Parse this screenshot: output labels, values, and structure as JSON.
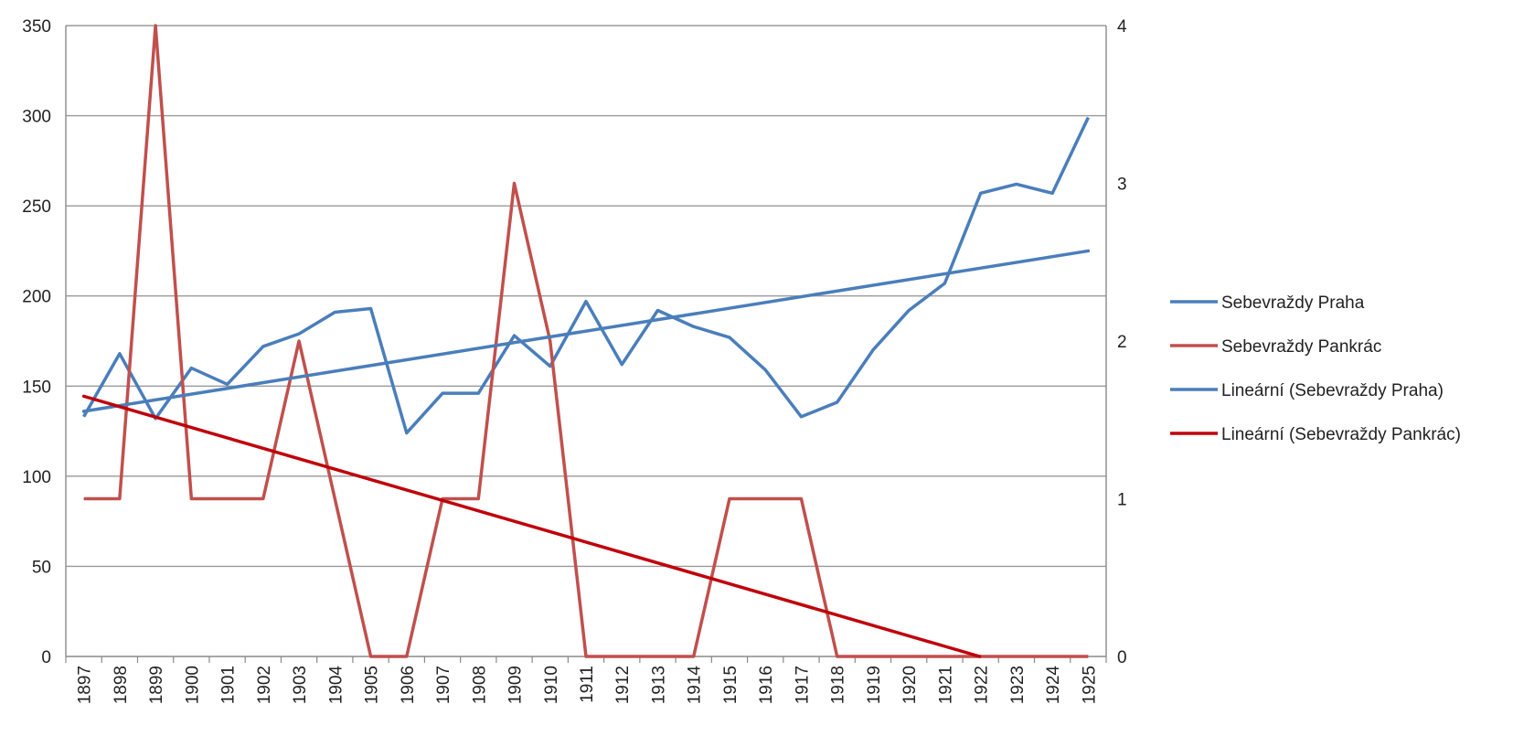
{
  "chart_data": {
    "type": "line",
    "title": "",
    "xlabel": "",
    "ylabel": "",
    "grid": true,
    "legend_position": "right",
    "categories": [
      "1897",
      "1898",
      "1899",
      "1900",
      "1901",
      "1902",
      "1903",
      "1904",
      "1905",
      "1906",
      "1907",
      "1908",
      "1909",
      "1910",
      "1911",
      "1912",
      "1913",
      "1914",
      "1915",
      "1916",
      "1917",
      "1918",
      "1919",
      "1920",
      "1921",
      "1922",
      "1923",
      "1924",
      "1925"
    ],
    "y_left": {
      "min": 0,
      "max": 350,
      "ticks": [
        0,
        50,
        100,
        150,
        200,
        250,
        300,
        350
      ]
    },
    "y_right": {
      "min": 0,
      "max": 4,
      "ticks": [
        0,
        1,
        2,
        3,
        4
      ]
    },
    "series": [
      {
        "name": "Sebevraždy Praha",
        "axis": "left",
        "color": "#4a7ebb",
        "values": [
          133,
          168,
          132,
          160,
          151,
          172,
          179,
          191,
          193,
          124,
          146,
          146,
          178,
          161,
          197,
          162,
          192,
          183,
          177,
          159,
          133,
          141,
          170,
          192,
          207,
          257,
          262,
          257,
          299
        ]
      },
      {
        "name": "Sebevraždy Pankrác",
        "axis": "right",
        "color": "#c0504d",
        "values": [
          1,
          1,
          4,
          1,
          1,
          1,
          2,
          1,
          0,
          0,
          1,
          1,
          3,
          2,
          0,
          0,
          0,
          0,
          1,
          1,
          1,
          0,
          0,
          0,
          0,
          0,
          0,
          0,
          0
        ]
      },
      {
        "name": "Lineární (Sebevraždy Praha)",
        "axis": "left",
        "color": "#4a7ebb",
        "trendline": true,
        "start": 136,
        "end": 225
      },
      {
        "name": "Lineární (Sebevraždy Pankrác)",
        "axis": "right",
        "color": "#c0000a",
        "trendline": true,
        "start": 1.65,
        "end": -0.2
      }
    ]
  }
}
